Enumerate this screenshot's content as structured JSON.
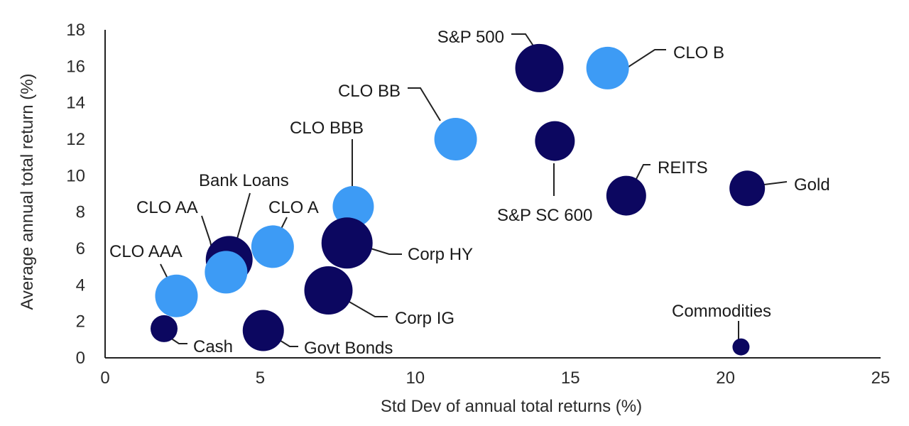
{
  "chart_data": {
    "type": "scatter",
    "xlabel": "Std Dev of annual total returns (%)",
    "ylabel": "Average annual total return (%)",
    "xlim": [
      0,
      25
    ],
    "ylim": [
      0,
      18
    ],
    "xticks": [
      "0",
      "5",
      "10",
      "15",
      "20",
      "25"
    ],
    "yticks": [
      "0",
      "2",
      "4",
      "6",
      "8",
      "10",
      "12",
      "14",
      "16",
      "18"
    ],
    "grid": false,
    "legend": "none",
    "colors": {
      "clo": "#3d9bf5",
      "other": "#0c0760"
    },
    "points": [
      {
        "label": "S&P 500",
        "x": 14.0,
        "y": 15.9,
        "group": "other",
        "size": 34
      },
      {
        "label": "CLO B",
        "x": 16.2,
        "y": 15.9,
        "group": "clo",
        "size": 30
      },
      {
        "label": "CLO BB",
        "x": 11.3,
        "y": 12.0,
        "group": "clo",
        "size": 30
      },
      {
        "label": "S&P SC 600",
        "x": 14.5,
        "y": 11.9,
        "group": "other",
        "size": 28
      },
      {
        "label": "REITS",
        "x": 16.8,
        "y": 8.9,
        "group": "other",
        "size": 28
      },
      {
        "label": "Gold",
        "x": 20.7,
        "y": 9.3,
        "group": "other",
        "size": 25
      },
      {
        "label": "CLO BBB",
        "x": 8.0,
        "y": 8.3,
        "group": "clo",
        "size": 29
      },
      {
        "label": "Corp HY",
        "x": 7.8,
        "y": 6.3,
        "group": "other",
        "size": 36
      },
      {
        "label": "CLO A",
        "x": 5.4,
        "y": 6.1,
        "group": "clo",
        "size": 30
      },
      {
        "label": "Bank Loans",
        "x": 4.0,
        "y": 5.4,
        "group": "other",
        "size": 33
      },
      {
        "label": "CLO AA",
        "x": 3.9,
        "y": 4.7,
        "group": "clo",
        "size": 30
      },
      {
        "label": "CLO AAA",
        "x": 2.3,
        "y": 3.4,
        "group": "clo",
        "size": 30
      },
      {
        "label": "Corp IG",
        "x": 7.2,
        "y": 3.7,
        "group": "other",
        "size": 34
      },
      {
        "label": "Cash",
        "x": 1.9,
        "y": 1.6,
        "group": "other",
        "size": 19
      },
      {
        "label": "Govt Bonds",
        "x": 5.1,
        "y": 1.5,
        "group": "other",
        "size": 29
      },
      {
        "label": "Commodities",
        "x": 20.5,
        "y": 0.6,
        "group": "other",
        "size": 12
      }
    ]
  }
}
